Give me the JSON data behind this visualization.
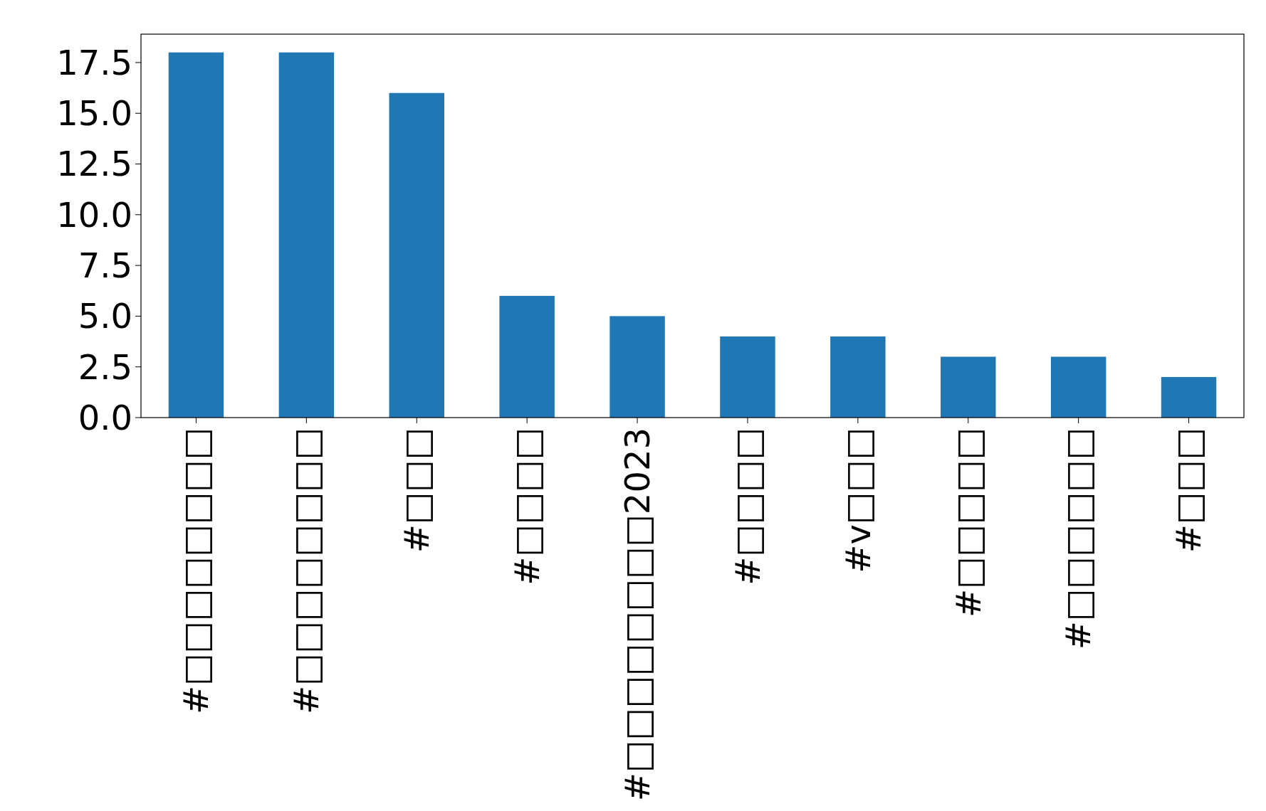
{
  "chart_data": {
    "type": "bar",
    "categories": [
      "#□□□□□□□□",
      "#□□□□□□□□",
      "#□□□",
      "#□□□□",
      "#□□□□□□□□2023",
      "#□□□□",
      "#v□□□",
      "#□□□□□",
      "#□□□□□□",
      "#□□□"
    ],
    "values": [
      18,
      18,
      16,
      6,
      5,
      4,
      4,
      3,
      3,
      2
    ],
    "color": "#1f77b4",
    "ylim": [
      0,
      18.9
    ],
    "yticks": [
      {
        "value": 0,
        "label": "0.0"
      },
      {
        "value": 2.5,
        "label": "2.5"
      },
      {
        "value": 5,
        "label": "5.0"
      },
      {
        "value": 7.5,
        "label": "7.5"
      },
      {
        "value": 10,
        "label": "10.0"
      },
      {
        "value": 12.5,
        "label": "12.5"
      },
      {
        "value": 15,
        "label": "15.0"
      },
      {
        "value": 17.5,
        "label": "17.5"
      }
    ],
    "grid": false
  }
}
